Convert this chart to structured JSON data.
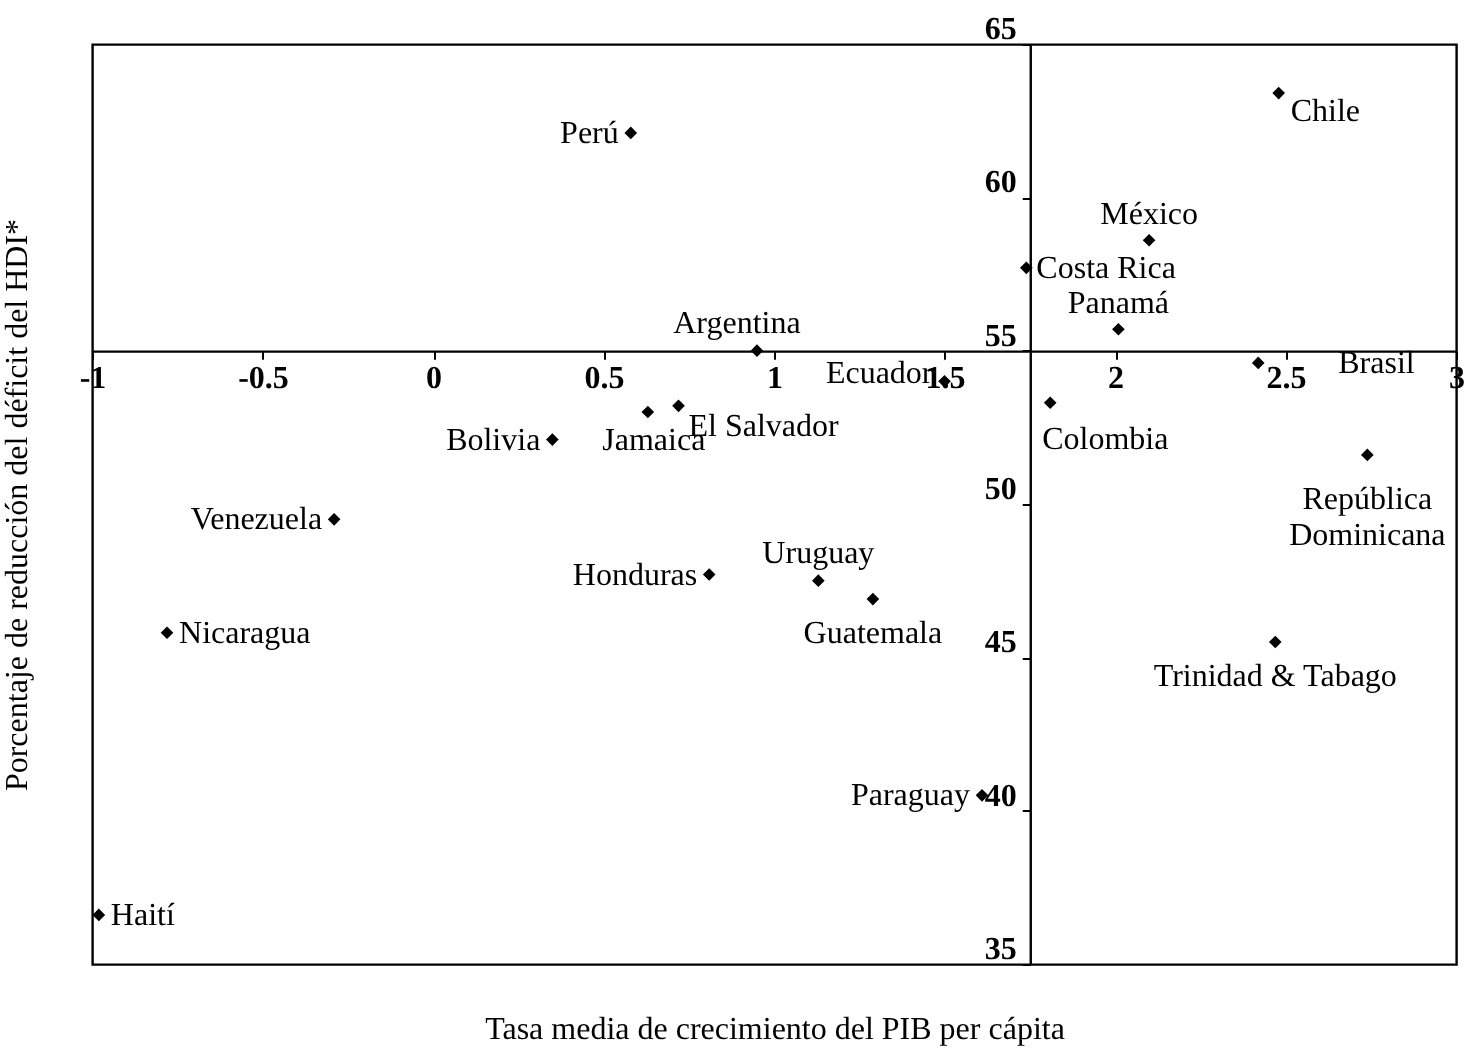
{
  "chart_data": {
    "type": "scatter",
    "xlabel": "Tasa media de crecimiento del PIB per cápita",
    "ylabel": "Porcentaje de reducción del déficit del HDI*",
    "x": [
      2.48,
      0.58,
      2.1,
      1.74,
      2.01,
      0.95,
      1.5,
      2.42,
      1.81,
      2.74,
      0.35,
      0.63,
      0.72,
      -0.29,
      0.81,
      -0.78,
      -0.98,
      1.13,
      1.29,
      2.47,
      1.61
    ],
    "series": [
      {
        "color": "#000000",
        "values": [
          63.4,
          62.1,
          58.6,
          57.7,
          55.7,
          55.0,
          54.0,
          54.6,
          53.3,
          51.6,
          52.1,
          53.0,
          53.2,
          49.5,
          47.7,
          45.8,
          36.6,
          47.5,
          46.9,
          45.5,
          40.5
        ]
      }
    ],
    "annotations": [
      {
        "text": "Chile",
        "x": 2.48,
        "y": 63.4
      },
      {
        "text": "Perú",
        "x": 0.58,
        "y": 62.1
      },
      {
        "text": "México",
        "x": 2.1,
        "y": 58.6
      },
      {
        "text": "Costa Rica",
        "x": 1.74,
        "y": 57.7
      },
      {
        "text": "Panamá",
        "x": 2.01,
        "y": 55.7
      },
      {
        "text": "Argentina",
        "x": 0.95,
        "y": 55.0
      },
      {
        "text": "Ecuador",
        "x": 1.5,
        "y": 54.0
      },
      {
        "text": "Brasil",
        "x": 2.42,
        "y": 54.6
      },
      {
        "text": "Colombia",
        "x": 1.81,
        "y": 53.3
      },
      {
        "text": "República\nDominicana",
        "x": 2.74,
        "y": 51.6
      },
      {
        "text": "Bolivia",
        "x": 0.35,
        "y": 52.1
      },
      {
        "text": "Jamaica",
        "x": 0.63,
        "y": 53.0
      },
      {
        "text": "El Salvador",
        "x": 0.72,
        "y": 53.2
      },
      {
        "text": "Venezuela",
        "x": -0.29,
        "y": 49.5
      },
      {
        "text": "Honduras",
        "x": 0.81,
        "y": 47.7
      },
      {
        "text": "Nicaragua",
        "x": -0.78,
        "y": 45.8
      },
      {
        "text": "Haití",
        "x": -0.98,
        "y": 36.6
      },
      {
        "text": "Uruguay",
        "x": 1.13,
        "y": 47.5
      },
      {
        "text": "Guatemala",
        "x": 1.29,
        "y": 46.9
      },
      {
        "text": "Trinidad & Tabago",
        "x": 2.47,
        "y": 45.5
      },
      {
        "text": "Paraguay",
        "x": 1.61,
        "y": 40.5
      }
    ],
    "xlim": [
      -1,
      3
    ],
    "xticks": [
      -1,
      -0.5,
      0,
      0.5,
      1,
      1.5,
      2,
      2.5,
      3
    ],
    "ylim": [
      35,
      65
    ],
    "yticks": [
      35,
      40,
      45,
      50,
      55,
      60,
      65
    ],
    "grid": false,
    "marker": "diamond"
  }
}
